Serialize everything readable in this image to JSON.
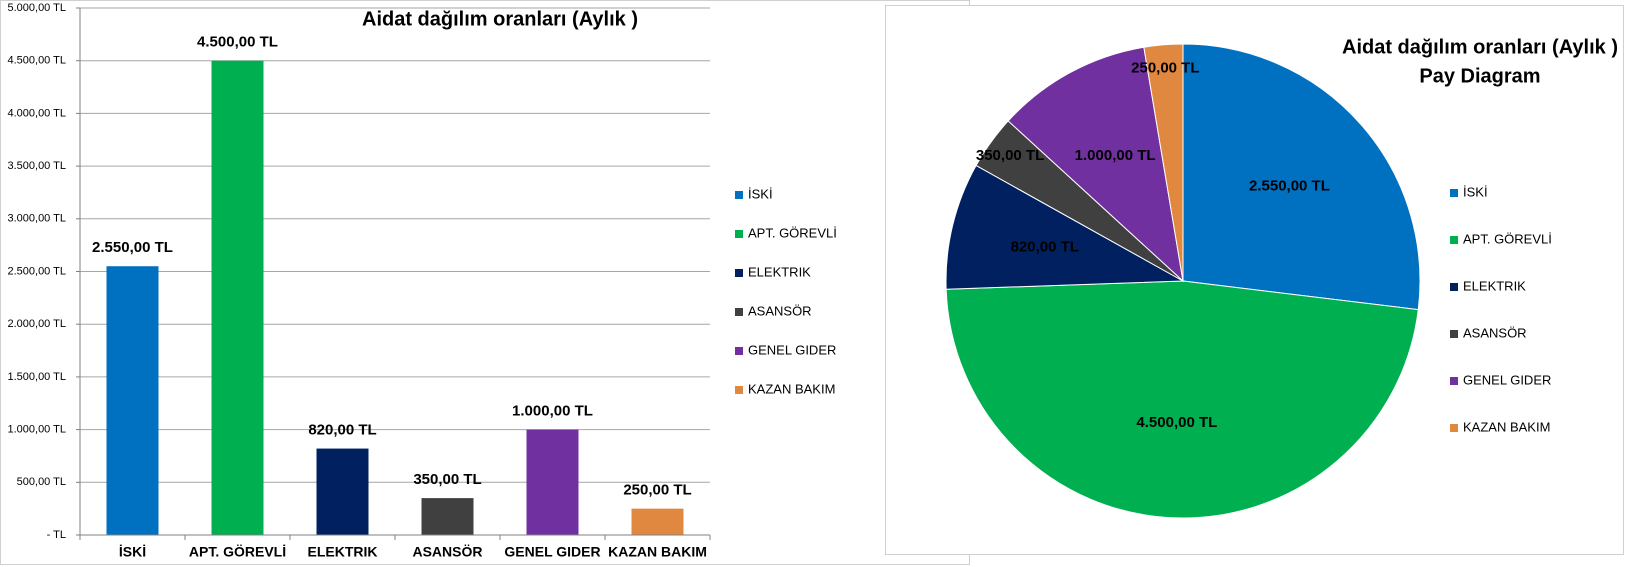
{
  "chart_data": [
    {
      "type": "bar",
      "title": "Aidat dağılım oranları (Aylık )",
      "categories": [
        "İSKİ",
        "APT. GÖREVLİ",
        "ELEKTRIK",
        "ASANSÖR",
        "GENEL GIDER",
        "KAZAN BAKIM"
      ],
      "values": [
        2550,
        4500,
        820,
        350,
        1000,
        250
      ],
      "value_labels": [
        "2.550,00 TL",
        "4.500,00 TL",
        "820,00 TL",
        "350,00 TL",
        "1.000,00 TL",
        "250,00 TL"
      ],
      "colors": [
        "#0070c0",
        "#00b050",
        "#002060",
        "#404040",
        "#7030a0",
        "#e0883f"
      ],
      "ylim": [
        0,
        5000
      ],
      "yticks": [
        {
          "value": 0,
          "label": "-  TL"
        },
        {
          "value": 500,
          "label": "500,00 TL"
        },
        {
          "value": 1000,
          "label": "1.000,00 TL"
        },
        {
          "value": 1500,
          "label": "1.500,00 TL"
        },
        {
          "value": 2000,
          "label": "2.000,00 TL"
        },
        {
          "value": 2500,
          "label": "2.500,00 TL"
        },
        {
          "value": 3000,
          "label": "3.000,00 TL"
        },
        {
          "value": 3500,
          "label": "3.500,00 TL"
        },
        {
          "value": 4000,
          "label": "4.000,00 TL"
        },
        {
          "value": 4500,
          "label": "4.500,00 TL"
        },
        {
          "value": 5000,
          "label": "5.000,00 TL"
        }
      ],
      "grid": true,
      "legend": "right"
    },
    {
      "type": "pie",
      "title": "Aidat dağılım oranları (Aylık )",
      "subtitle": "Pay Diagram",
      "categories": [
        "İSKİ",
        "APT. GÖREVLİ",
        "ELEKTRIK",
        "ASANSÖR",
        "GENEL GIDER",
        "KAZAN BAKIM"
      ],
      "values": [
        2550,
        4500,
        820,
        350,
        1000,
        250
      ],
      "value_labels": [
        "2.550,00 TL",
        "4.500,00 TL",
        "820,00 TL",
        "350,00 TL",
        "1.000,00 TL",
        "250,00 TL"
      ],
      "colors": [
        "#0070c0",
        "#00b050",
        "#002060",
        "#404040",
        "#7030a0",
        "#e0883f"
      ],
      "legend": "right"
    }
  ]
}
